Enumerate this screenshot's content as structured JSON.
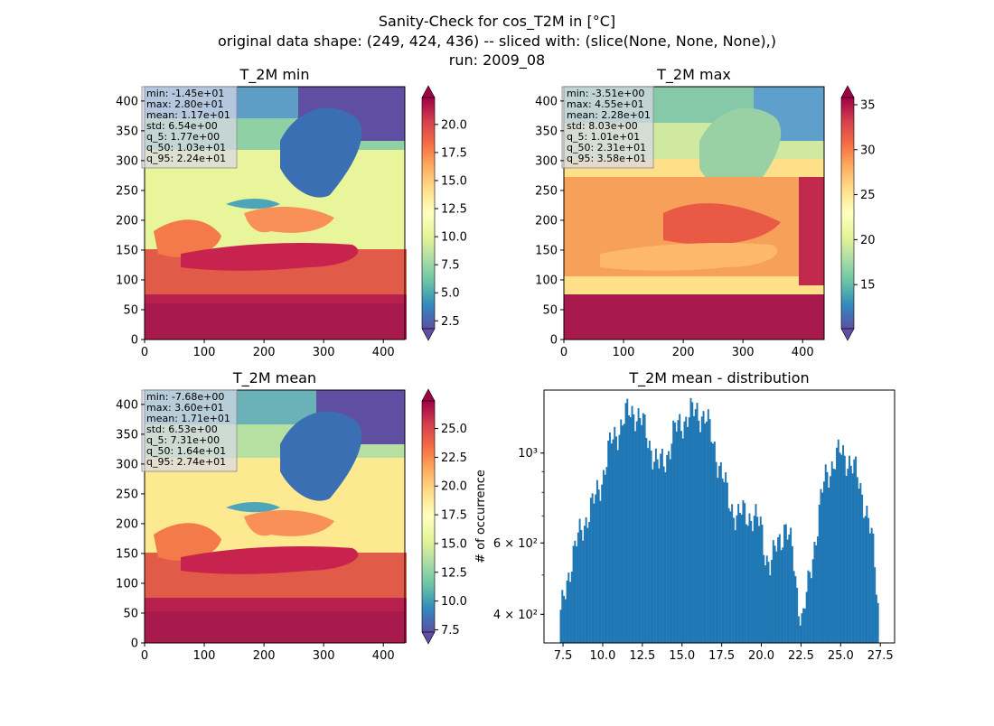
{
  "figure": {
    "title_line1": "Sanity-Check for cos_T2M in [°C]",
    "title_line2": "original data shape: (249, 424, 436) -- sliced with: (slice(None, None, None),)",
    "title_line3": "run: 2009_08"
  },
  "chart_data": [
    {
      "type": "heatmap",
      "title": "T_2M min",
      "xlim": [
        0,
        436
      ],
      "ylim": [
        0,
        424
      ],
      "xticks": [
        "0",
        "100",
        "200",
        "300",
        "400"
      ],
      "yticks": [
        "0",
        "50",
        "100",
        "150",
        "200",
        "250",
        "300",
        "350",
        "400"
      ],
      "colormap": "Spectral_r",
      "colorbar": {
        "vmin": 1.8,
        "vmax": 22.4,
        "ticks": [
          "2.5",
          "5.0",
          "7.5",
          "10.0",
          "12.5",
          "15.0",
          "17.5",
          "20.0"
        ],
        "extend": "both"
      },
      "stats": [
        "min: -1.45e+01",
        "max: 2.80e+01",
        "mean: 1.17e+01",
        "std: 6.54e+00",
        "q_5: 1.77e+00",
        "q_50: 1.03e+01",
        "q_95: 2.24e+01"
      ]
    },
    {
      "type": "heatmap",
      "title": "T_2M max",
      "xlim": [
        0,
        436
      ],
      "ylim": [
        0,
        424
      ],
      "xticks": [
        "0",
        "100",
        "200",
        "300",
        "400"
      ],
      "yticks": [
        "0",
        "50",
        "100",
        "150",
        "200",
        "250",
        "300",
        "350",
        "400"
      ],
      "colormap": "Spectral_r",
      "colorbar": {
        "vmin": 10.1,
        "vmax": 35.8,
        "ticks": [
          "15",
          "20",
          "25",
          "30",
          "35"
        ],
        "extend": "both"
      },
      "stats": [
        "min: -3.51e+00",
        "max: 4.55e+01",
        "mean: 2.28e+01",
        "std: 8.03e+00",
        "q_5: 1.01e+01",
        "q_50: 2.31e+01",
        "q_95: 3.58e+01"
      ]
    },
    {
      "type": "heatmap",
      "title": "T_2M mean",
      "xlim": [
        0,
        436
      ],
      "ylim": [
        0,
        424
      ],
      "xticks": [
        "0",
        "100",
        "200",
        "300",
        "400"
      ],
      "yticks": [
        "0",
        "50",
        "100",
        "150",
        "200",
        "250",
        "300",
        "350",
        "400"
      ],
      "colormap": "Spectral_r",
      "colorbar": {
        "vmin": 7.3,
        "vmax": 27.4,
        "ticks": [
          "7.5",
          "10.0",
          "12.5",
          "15.0",
          "17.5",
          "20.0",
          "22.5",
          "25.0"
        ],
        "extend": "both"
      },
      "stats": [
        "min: -7.68e+00",
        "max: 3.60e+01",
        "mean: 1.71e+01",
        "std: 6.53e+00",
        "q_5: 7.31e+00",
        "q_50: 1.64e+01",
        "q_95: 2.74e+01"
      ]
    },
    {
      "type": "bar",
      "title": "T_2M mean - distribution",
      "ylabel": "# of occurrence",
      "yscale": "log",
      "xlim": [
        6.3,
        28.4
      ],
      "ylim": [
        340,
        1430
      ],
      "xticks": [
        "7.5",
        "10.0",
        "12.5",
        "15.0",
        "17.5",
        "20.0",
        "22.5",
        "25.0",
        "27.5"
      ],
      "yticks_major": [
        {
          "value": 400,
          "label": "4 × 10²"
        },
        {
          "value": 600,
          "label": "6 × 10²"
        },
        {
          "value": 1000,
          "label": "10³"
        }
      ],
      "bar_color": "#1f77b4",
      "bins": {
        "start": 7.3,
        "end": 27.4,
        "count": 201
      },
      "profile": [
        [
          7.3,
          380
        ],
        [
          7.6,
          450
        ],
        [
          8.0,
          540
        ],
        [
          8.5,
          620
        ],
        [
          9.0,
          700
        ],
        [
          9.5,
          760
        ],
        [
          10.0,
          880
        ],
        [
          10.5,
          1050
        ],
        [
          11.0,
          1150
        ],
        [
          11.5,
          1240
        ],
        [
          12.0,
          1280
        ],
        [
          12.5,
          1180
        ],
        [
          13.0,
          1050
        ],
        [
          13.5,
          920
        ],
        [
          14.0,
          980
        ],
        [
          14.5,
          1120
        ],
        [
          15.0,
          1200
        ],
        [
          15.5,
          1240
        ],
        [
          16.0,
          1280
        ],
        [
          16.5,
          1210
        ],
        [
          17.0,
          1060
        ],
        [
          17.5,
          880
        ],
        [
          18.0,
          760
        ],
        [
          18.5,
          690
        ],
        [
          19.0,
          720
        ],
        [
          19.5,
          690
        ],
        [
          20.0,
          660
        ],
        [
          20.3,
          560
        ],
        [
          20.6,
          520
        ],
        [
          21.0,
          600
        ],
        [
          21.5,
          660
        ],
        [
          22.0,
          560
        ],
        [
          22.3,
          440
        ],
        [
          22.6,
          380
        ],
        [
          23.0,
          480
        ],
        [
          23.5,
          650
        ],
        [
          24.0,
          860
        ],
        [
          24.5,
          950
        ],
        [
          25.0,
          1000
        ],
        [
          25.5,
          970
        ],
        [
          26.0,
          880
        ],
        [
          26.5,
          760
        ],
        [
          27.0,
          600
        ],
        [
          27.4,
          400
        ]
      ]
    }
  ]
}
